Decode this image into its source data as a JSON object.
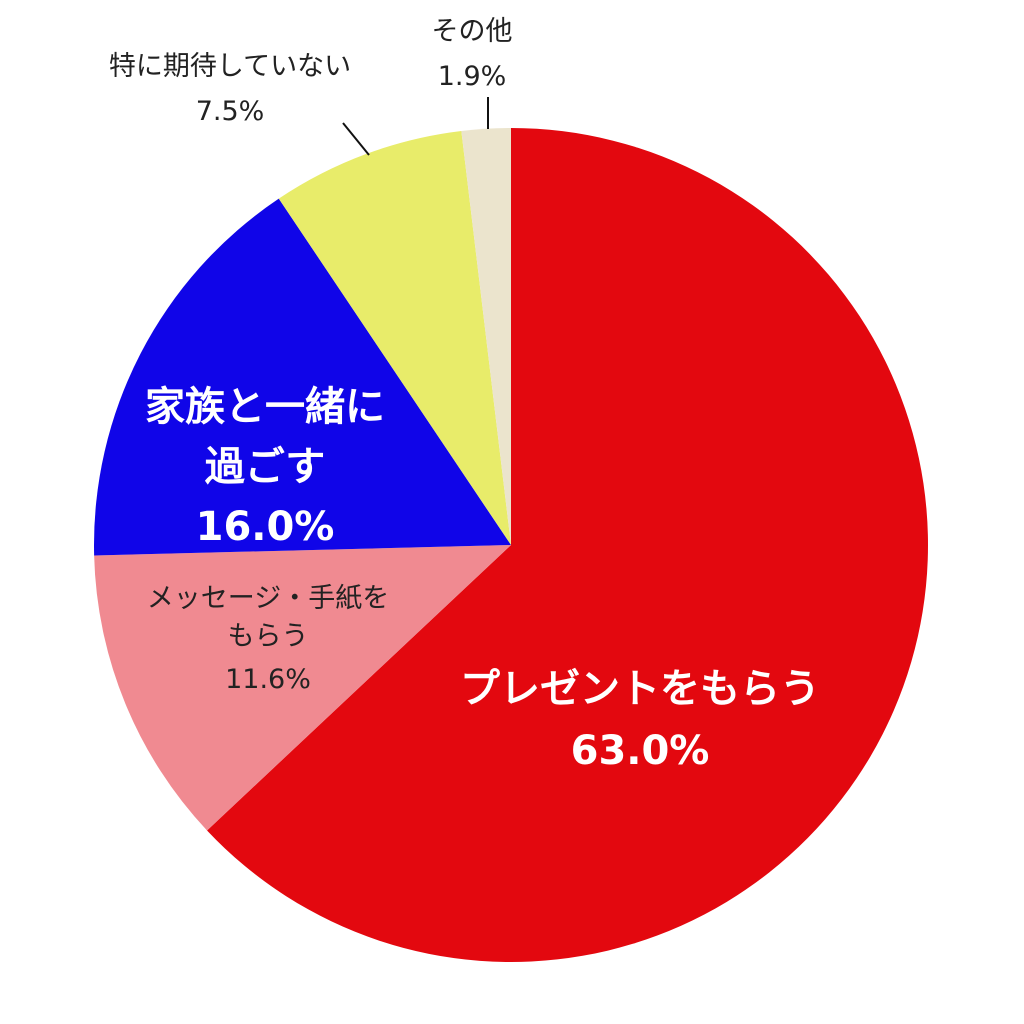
{
  "chart_data": {
    "type": "pie",
    "start": "top",
    "direction": "clockwise",
    "slices": [
      {
        "label_lines": [
          "プレゼントをもらう"
        ],
        "value_label": "63.0%",
        "value": 63.0,
        "color": "#E3080F"
      },
      {
        "label_lines": [
          "メッセージ・手紙を",
          "もらう"
        ],
        "value_label": "11.6%",
        "value": 11.6,
        "color": "#F08A91"
      },
      {
        "label_lines": [
          "家族と一緒に",
          "過ごす"
        ],
        "value_label": "16.0%",
        "value": 16.0,
        "color": "#1005E8"
      },
      {
        "label_lines": [
          "特に期待していない"
        ],
        "value_label": "7.5%",
        "value": 7.5,
        "color": "#E8EC6A"
      },
      {
        "label_lines": [
          "その他"
        ],
        "value_label": "1.9%",
        "value": 1.9,
        "color": "#EBE4CD"
      }
    ]
  }
}
